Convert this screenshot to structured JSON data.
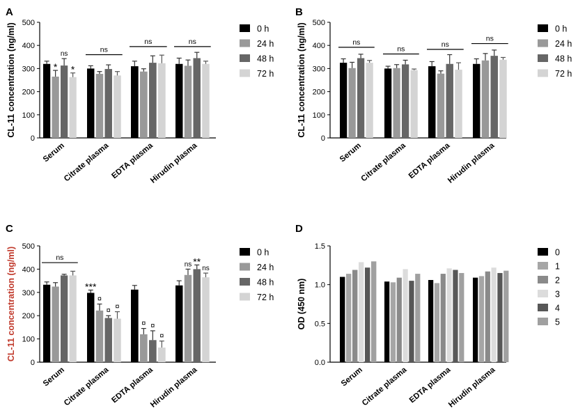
{
  "figure": {
    "title": ""
  },
  "chart_data": [
    {
      "panel": "A",
      "type": "bar",
      "title": "",
      "xlabel": "",
      "ylabel": "CL-11 concentration (ng/ml)",
      "ylabel_color": "#000000",
      "ylim": [
        0,
        500
      ],
      "yticks": [
        0,
        100,
        200,
        300,
        400,
        500
      ],
      "categories": [
        "Serum",
        "Citrate plasma",
        "EDTA plasma",
        "Hirudin plasma"
      ],
      "legend_position": "right",
      "series": [
        {
          "name": "0 h",
          "color": "#000000",
          "values": [
            320,
            300,
            310,
            320
          ],
          "errors": [
            12,
            12,
            22,
            25
          ]
        },
        {
          "name": "24 h",
          "color": "#999999",
          "values": [
            265,
            277,
            287,
            312
          ],
          "errors": [
            27,
            10,
            12,
            25
          ]
        },
        {
          "name": "48 h",
          "color": "#666666",
          "values": [
            313,
            298,
            325,
            345
          ],
          "errors": [
            30,
            18,
            30,
            25
          ]
        },
        {
          "name": "72 h",
          "color": "#d4d4d4",
          "values": [
            263,
            270,
            323,
            320
          ],
          "errors": [
            18,
            17,
            35,
            12
          ]
        }
      ],
      "annotations": [
        {
          "text": "*",
          "category": 0,
          "series": 1
        },
        {
          "text": "ns",
          "category": 0,
          "series": 2
        },
        {
          "text": "*",
          "category": 0,
          "series": 3
        },
        {
          "text": "ns",
          "category": 1,
          "span": [
            0,
            3
          ],
          "y": 360
        },
        {
          "text": "ns",
          "category": 2,
          "span": [
            0,
            3
          ],
          "y": 395
        },
        {
          "text": "ns",
          "category": 3,
          "span": [
            0,
            3
          ],
          "y": 395
        }
      ]
    },
    {
      "panel": "B",
      "type": "bar",
      "title": "",
      "xlabel": "",
      "ylabel": "CL-11 concentration (ng/ml)",
      "ylabel_color": "#000000",
      "ylim": [
        0,
        500
      ],
      "yticks": [
        0,
        100,
        200,
        300,
        400,
        500
      ],
      "categories": [
        "Serum",
        "Citrate plasma",
        "EDTA plasma",
        "Hirudin plasma"
      ],
      "legend_position": "right",
      "series": [
        {
          "name": "0 h",
          "color": "#000000",
          "values": [
            325,
            300,
            310,
            320
          ],
          "errors": [
            17,
            10,
            20,
            22
          ]
        },
        {
          "name": "24 h",
          "color": "#999999",
          "values": [
            302,
            302,
            278,
            335
          ],
          "errors": [
            25,
            15,
            12,
            30
          ]
        },
        {
          "name": "48 h",
          "color": "#666666",
          "values": [
            345,
            318,
            320,
            355
          ],
          "errors": [
            17,
            18,
            40,
            25
          ]
        },
        {
          "name": "72 h",
          "color": "#d4d4d4",
          "values": [
            325,
            293,
            295,
            338
          ],
          "errors": [
            10,
            5,
            30,
            10
          ]
        }
      ],
      "annotations": [
        {
          "text": "ns",
          "category": 0,
          "span": [
            0,
            3
          ],
          "y": 392
        },
        {
          "text": "ns",
          "category": 1,
          "span": [
            0,
            3
          ],
          "y": 363
        },
        {
          "text": "ns",
          "category": 2,
          "span": [
            0,
            3
          ],
          "y": 383
        },
        {
          "text": "ns",
          "category": 3,
          "span": [
            0,
            3
          ],
          "y": 408
        }
      ]
    },
    {
      "panel": "C",
      "type": "bar",
      "title": "",
      "xlabel": "",
      "ylabel": "CL-11 concentration (ng/ml)",
      "ylabel_color": "#c0392b",
      "ylim": [
        0,
        500
      ],
      "yticks": [
        0,
        100,
        200,
        300,
        400,
        500
      ],
      "categories": [
        "Serum",
        "Citrate plasma",
        "EDTA plasma",
        "Hirudin plasma"
      ],
      "legend_position": "right",
      "series": [
        {
          "name": "0 h",
          "color": "#000000",
          "values": [
            333,
            298,
            312,
            330
          ],
          "errors": [
            12,
            12,
            18,
            20
          ]
        },
        {
          "name": "24 h",
          "color": "#999999",
          "values": [
            325,
            222,
            120,
            375
          ],
          "errors": [
            17,
            28,
            25,
            25
          ]
        },
        {
          "name": "48 h",
          "color": "#666666",
          "values": [
            373,
            190,
            95,
            400
          ],
          "errors": [
            5,
            10,
            40,
            18
          ]
        },
        {
          "name": "72 h",
          "color": "#d4d4d4",
          "values": [
            373,
            187,
            63,
            365
          ],
          "errors": [
            18,
            30,
            28,
            18
          ]
        }
      ],
      "annotations": [
        {
          "text": "ns",
          "category": 0,
          "span": [
            0,
            3
          ],
          "y": 428
        },
        {
          "text": "***",
          "category": 1,
          "series": 0
        },
        {
          "text": "¤",
          "category": 1,
          "series": 1
        },
        {
          "text": "¤",
          "category": 1,
          "series": 2
        },
        {
          "text": "¤",
          "category": 1,
          "series": 3
        },
        {
          "text": "¤",
          "category": 2,
          "series": 1
        },
        {
          "text": "¤",
          "category": 2,
          "series": 2
        },
        {
          "text": "¤",
          "category": 2,
          "series": 3
        },
        {
          "text": "ns",
          "category": 3,
          "series": 1
        },
        {
          "text": "**",
          "category": 3,
          "series": 2
        },
        {
          "text": "ns",
          "category": 3,
          "series": 3
        }
      ]
    },
    {
      "panel": "D",
      "type": "bar",
      "title": "",
      "xlabel": "",
      "ylabel": "OD (450 nm)",
      "ylabel_color": "#000000",
      "ylim": [
        0,
        1.5
      ],
      "yticks": [
        0.0,
        0.5,
        1.0,
        1.5
      ],
      "ytick_format": "0.0",
      "categories": [
        "Serum",
        "Citrate plasma",
        "EDTA plasma",
        "Hirudin plasma"
      ],
      "legend_position": "right",
      "series": [
        {
          "name": "0",
          "color": "#000000",
          "values": [
            1.1,
            1.04,
            1.06,
            1.09
          ]
        },
        {
          "name": "1",
          "color": "#a6a6a6",
          "values": [
            1.14,
            1.03,
            1.02,
            1.11
          ]
        },
        {
          "name": "2",
          "color": "#8a8a8a",
          "values": [
            1.19,
            1.09,
            1.14,
            1.17
          ]
        },
        {
          "name": "3",
          "color": "#dcdcdc",
          "values": [
            1.29,
            1.2,
            1.21,
            1.22
          ]
        },
        {
          "name": "4",
          "color": "#575757",
          "values": [
            1.22,
            1.05,
            1.19,
            1.15
          ]
        },
        {
          "name": "5",
          "color": "#a0a0a0",
          "values": [
            1.3,
            1.14,
            1.15,
            1.18
          ]
        }
      ],
      "annotations": []
    }
  ]
}
